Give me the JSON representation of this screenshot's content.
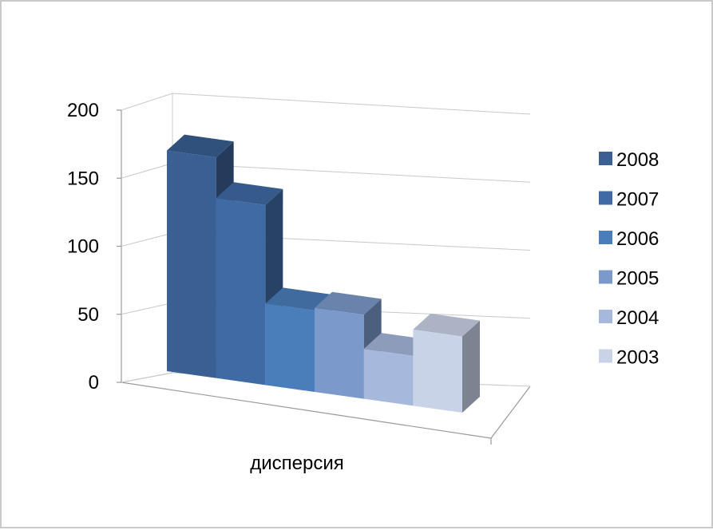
{
  "chart_data": {
    "type": "bar",
    "categories": [
      "дисперсия"
    ],
    "series": [
      {
        "name": "2008",
        "values": [
          168
        ],
        "color": "#3a5f93"
      },
      {
        "name": "2007",
        "values": [
          137
        ],
        "color": "#3f6aa3"
      },
      {
        "name": "2006",
        "values": [
          62
        ],
        "color": "#4a7ebb"
      },
      {
        "name": "2005",
        "values": [
          64
        ],
        "color": "#7b9acb"
      },
      {
        "name": "2004",
        "values": [
          38
        ],
        "color": "#a6b8db"
      },
      {
        "name": "2003",
        "values": [
          58
        ],
        "color": "#c9d3e8"
      }
    ],
    "ylim": [
      0,
      200
    ],
    "yticks": [
      "0",
      "50",
      "100",
      "150",
      "200"
    ],
    "title": "",
    "xlabel": "",
    "ylabel": "",
    "grid": true,
    "legend_position": "right",
    "style": "3d-clustered-column"
  }
}
